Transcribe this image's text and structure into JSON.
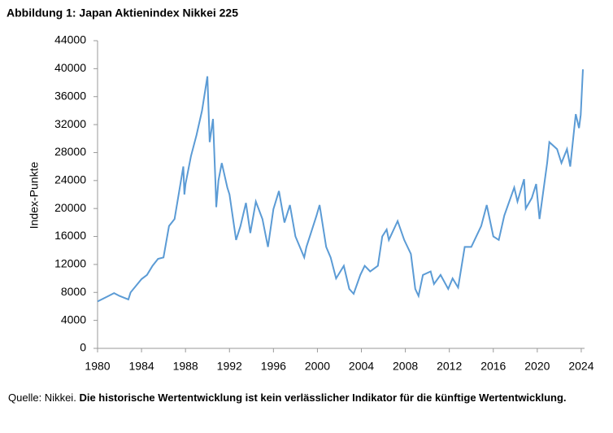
{
  "chart_data": {
    "type": "line",
    "title": "Abbildung 1: Japan Aktienindex Nikkei 225",
    "y_label": "Index-Punkte",
    "source": "Quelle: Nikkei.",
    "disclaimer": "Die historische Wertentwicklung ist kein verlässlicher Indikator für die künftige Wertentwicklung.",
    "color": "#5b9bd5",
    "x": [
      1980,
      1981,
      1981.5,
      1982,
      1982.8,
      1983,
      1984,
      1984.5,
      1985,
      1985.5,
      1986,
      1986.5,
      1987,
      1987.8,
      1987.9,
      1988,
      1988.5,
      1989,
      1989.5,
      1989.99,
      1990.2,
      1990.5,
      1990.75,
      1990.8,
      1991,
      1991.3,
      1991.8,
      1992,
      1992.6,
      1993,
      1993.5,
      1993.9,
      1994.4,
      1995,
      1995.5,
      1996,
      1996.5,
      1997,
      1997.5,
      1998,
      1998.8,
      1999,
      1999.9,
      2000.2,
      2000.8,
      2001.2,
      2001.7,
      2002.4,
      2002.9,
      2003.3,
      2003.9,
      2004.3,
      2004.8,
      2005.5,
      2005.9,
      2006.3,
      2006.5,
      2007.3,
      2007.9,
      2008.5,
      2008.9,
      2009.2,
      2009.6,
      2010.3,
      2010.6,
      2011.2,
      2011.9,
      2012.3,
      2012.8,
      2013.4,
      2014,
      2014.9,
      2015.4,
      2016,
      2016.5,
      2017,
      2017.9,
      2018.2,
      2018.8,
      2018.95,
      2019.5,
      2019.9,
      2020.2,
      2020.9,
      2021.1,
      2021.8,
      2022.2,
      2022.7,
      2023,
      2023.5,
      2023.8,
      2023.95,
      2024.15
    ],
    "values": [
      6700,
      7500,
      7900,
      7500,
      7000,
      8000,
      9900,
      10500,
      11800,
      12800,
      13000,
      17500,
      18500,
      26000,
      22000,
      23500,
      27500,
      30500,
      34000,
      38900,
      29500,
      32800,
      22500,
      20200,
      24000,
      26500,
      23000,
      22000,
      15500,
      17500,
      20800,
      16500,
      21000,
      18500,
      14500,
      19900,
      22500,
      18000,
      20500,
      16000,
      13000,
      14500,
      18900,
      20500,
      14500,
      13000,
      10000,
      11800,
      8500,
      7800,
      10500,
      11800,
      11000,
      11800,
      16000,
      17000,
      15500,
      18200,
      15500,
      13500,
      8500,
      7500,
      10500,
      11000,
      9200,
      10500,
      8500,
      10000,
      8700,
      14500,
      14500,
      17500,
      20500,
      16000,
      15500,
      19000,
      23000,
      21000,
      24200,
      20000,
      21500,
      23500,
      18500,
      26500,
      29500,
      28500,
      26500,
      28500,
      26000,
      33500,
      31500,
      33400,
      39900
    ],
    "xlim": [
      1980,
      2024.3
    ],
    "xticks": [
      1980,
      1984,
      1988,
      1992,
      1996,
      2000,
      2004,
      2008,
      2012,
      2016,
      2020,
      2024
    ],
    "ylim": [
      0,
      44000
    ],
    "yticks": [
      0,
      4000,
      8000,
      12000,
      16000,
      20000,
      24000,
      28000,
      32000,
      36000,
      40000,
      44000
    ]
  }
}
